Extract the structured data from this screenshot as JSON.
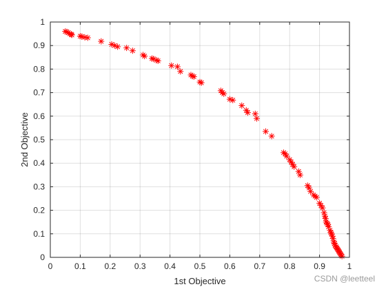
{
  "chart_data": {
    "type": "scatter",
    "xlabel": "1st Objective",
    "ylabel": "2nd Objective",
    "xlim": [
      0,
      1
    ],
    "ylim": [
      0,
      1
    ],
    "xticks": [
      "0",
      "0.1",
      "0.2",
      "0.3",
      "0.4",
      "0.5",
      "0.6",
      "0.7",
      "0.8",
      "0.9",
      "1"
    ],
    "yticks": [
      "0",
      "0.1",
      "0.2",
      "0.3",
      "0.4",
      "0.5",
      "0.6",
      "0.7",
      "0.8",
      "0.9",
      "1"
    ],
    "grid": true,
    "marker": "asterisk",
    "marker_color": "#ff0000",
    "series": [
      {
        "x": [
          0.05,
          0.055,
          0.06,
          0.065,
          0.07,
          0.072,
          0.1,
          0.105,
          0.115,
          0.125,
          0.17,
          0.205,
          0.215,
          0.225,
          0.255,
          0.275,
          0.31,
          0.315,
          0.34,
          0.345,
          0.355,
          0.36,
          0.405,
          0.425,
          0.435,
          0.47,
          0.475,
          0.48,
          0.5,
          0.505,
          0.57,
          0.575,
          0.58,
          0.6,
          0.61,
          0.64,
          0.655,
          0.66,
          0.685,
          0.69,
          0.72,
          0.74,
          0.78,
          0.785,
          0.79,
          0.8,
          0.805,
          0.81,
          0.815,
          0.83,
          0.835,
          0.86,
          0.865,
          0.87,
          0.88,
          0.885,
          0.89,
          0.9,
          0.905,
          0.91,
          0.915,
          0.918,
          0.92,
          0.922,
          0.925,
          0.928,
          0.93,
          0.935,
          0.938,
          0.94,
          0.943,
          0.945,
          0.948,
          0.95,
          0.952,
          0.955,
          0.958,
          0.96,
          0.963,
          0.965,
          0.967,
          0.97,
          0.972,
          0.975
        ],
        "y": [
          0.96,
          0.958,
          0.955,
          0.95,
          0.948,
          0.945,
          0.94,
          0.938,
          0.935,
          0.933,
          0.918,
          0.905,
          0.9,
          0.895,
          0.89,
          0.878,
          0.86,
          0.855,
          0.845,
          0.843,
          0.838,
          0.835,
          0.815,
          0.81,
          0.79,
          0.775,
          0.77,
          0.768,
          0.745,
          0.742,
          0.708,
          0.7,
          0.695,
          0.672,
          0.668,
          0.645,
          0.625,
          0.615,
          0.61,
          0.59,
          0.535,
          0.515,
          0.445,
          0.44,
          0.43,
          0.415,
          0.405,
          0.395,
          0.385,
          0.365,
          0.35,
          0.305,
          0.295,
          0.28,
          0.265,
          0.26,
          0.255,
          0.23,
          0.22,
          0.21,
          0.19,
          0.175,
          0.165,
          0.15,
          0.145,
          0.14,
          0.13,
          0.115,
          0.105,
          0.1,
          0.09,
          0.08,
          0.065,
          0.06,
          0.05,
          0.045,
          0.04,
          0.035,
          0.03,
          0.025,
          0.02,
          0.015,
          0.01,
          0.005
        ]
      }
    ]
  },
  "watermark": "CSDN @leetteel"
}
